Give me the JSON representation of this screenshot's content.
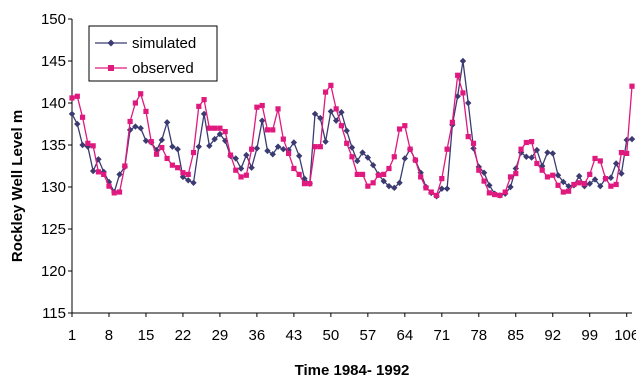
{
  "chart_data": {
    "type": "line",
    "xlabel": "Time 1984- 1992",
    "ylabel": "Rockley Well Level m",
    "xlim": [
      1,
      107
    ],
    "ylim": [
      115,
      150
    ],
    "yticks": [
      115,
      120,
      125,
      130,
      135,
      140,
      145,
      150
    ],
    "xticks": [
      1,
      8,
      15,
      22,
      29,
      36,
      43,
      50,
      57,
      64,
      71,
      78,
      85,
      92,
      99,
      106
    ],
    "grid": false,
    "legend_position": "top-left",
    "series": [
      {
        "name": "simulated",
        "color": "#3b3b72",
        "marker": "diamond",
        "x": [
          1,
          2,
          3,
          4,
          5,
          6,
          7,
          8,
          9,
          10,
          11,
          12,
          13,
          14,
          15,
          16,
          17,
          18,
          19,
          20,
          21,
          22,
          23,
          24,
          25,
          26,
          27,
          28,
          29,
          30,
          31,
          32,
          33,
          34,
          35,
          36,
          37,
          38,
          39,
          40,
          41,
          42,
          43,
          44,
          45,
          46,
          47,
          48,
          49,
          50,
          51,
          52,
          53,
          54,
          55,
          56,
          57,
          58,
          59,
          60,
          61,
          62,
          63,
          64,
          65,
          66,
          67,
          68,
          69,
          70,
          71,
          72,
          73,
          74,
          75,
          76,
          77,
          78,
          79,
          80,
          81,
          82,
          83,
          84,
          85,
          86,
          87,
          88,
          89,
          90,
          91,
          92,
          93,
          94,
          95,
          96,
          97,
          98,
          99,
          100,
          101,
          102,
          103,
          104,
          105,
          106,
          107
        ],
        "y": [
          138.7,
          137.5,
          135.0,
          134.8,
          131.9,
          133.3,
          131.8,
          130.6,
          129.4,
          131.5,
          132.4,
          136.8,
          137.2,
          137.0,
          135.5,
          135.3,
          134.4,
          135.6,
          137.7,
          134.8,
          134.5,
          131.2,
          130.8,
          130.5,
          134.8,
          138.7,
          134.9,
          135.7,
          136.3,
          135.5,
          133.7,
          133.4,
          132.2,
          133.8,
          132.3,
          134.6,
          137.9,
          134.3,
          133.9,
          134.8,
          134.5,
          134.4,
          135.3,
          133.7,
          131.0,
          130.4,
          138.7,
          138.2,
          135.4,
          139.0,
          137.9,
          138.9,
          136.7,
          134.7,
          133.1,
          134.1,
          133.5,
          132.6,
          131.5,
          130.7,
          130.1,
          129.9,
          130.5,
          133.4,
          134.5,
          133.2,
          131.7,
          130.0,
          129.3,
          128.9,
          129.8,
          129.8,
          137.4,
          140.8,
          145.0,
          140.0,
          134.6,
          132.4,
          131.7,
          130.2,
          129.2,
          129.0,
          129.2,
          130.0,
          132.2,
          134.1,
          133.6,
          133.5,
          134.4,
          132.5,
          134.1,
          134.0,
          131.4,
          130.6,
          130.1,
          130.2,
          131.3,
          130.1,
          130.4,
          130.9,
          130.1,
          131.0,
          131.1,
          132.8,
          131.6,
          135.6,
          135.7
        ]
      },
      {
        "name": "observed",
        "color": "#e0197f",
        "marker": "square",
        "x": [
          1,
          2,
          3,
          4,
          5,
          6,
          7,
          8,
          9,
          10,
          11,
          12,
          13,
          14,
          15,
          16,
          17,
          18,
          19,
          20,
          21,
          22,
          23,
          24,
          25,
          26,
          27,
          28,
          29,
          30,
          31,
          32,
          33,
          34,
          35,
          36,
          37,
          38,
          39,
          40,
          41,
          42,
          43,
          44,
          45,
          46,
          47,
          48,
          49,
          50,
          51,
          52,
          53,
          54,
          55,
          56,
          57,
          58,
          59,
          60,
          61,
          62,
          63,
          64,
          65,
          66,
          67,
          68,
          69,
          70,
          71,
          72,
          73,
          74,
          75,
          76,
          77,
          78,
          79,
          80,
          81,
          82,
          83,
          84,
          85,
          86,
          87,
          88,
          89,
          90,
          91,
          92,
          93,
          94,
          95,
          96,
          97,
          98,
          99,
          100,
          101,
          102,
          103,
          104,
          105,
          106,
          107
        ],
        "y": [
          140.6,
          140.8,
          138.3,
          135.2,
          134.9,
          131.8,
          131.5,
          130.1,
          129.3,
          129.4,
          132.5,
          137.8,
          140.0,
          141.1,
          139.0,
          135.4,
          133.9,
          134.7,
          133.4,
          132.6,
          132.3,
          131.7,
          131.5,
          134.1,
          139.6,
          140.4,
          137.0,
          137.0,
          137.0,
          136.6,
          133.8,
          132.0,
          131.2,
          131.4,
          134.5,
          139.5,
          139.7,
          136.8,
          136.8,
          139.3,
          135.7,
          134.0,
          132.2,
          131.5,
          130.4,
          130.4,
          134.8,
          134.8,
          141.3,
          142.1,
          139.3,
          137.3,
          135.2,
          133.6,
          131.5,
          131.5,
          130.1,
          130.5,
          131.4,
          131.5,
          132.2,
          133.6,
          136.9,
          137.3,
          134.5,
          133.2,
          131.2,
          129.9,
          129.4,
          129.0,
          131.0,
          134.5,
          137.7,
          143.3,
          141.2,
          136.0,
          135.2,
          132.0,
          130.7,
          129.3,
          129.1,
          129.0,
          129.4,
          131.2,
          131.6,
          134.5,
          135.3,
          135.4,
          132.8,
          132.0,
          131.2,
          131.4,
          130.2,
          129.4,
          129.5,
          130.3,
          130.5,
          130.4,
          131.5,
          133.4,
          133.1,
          131.0,
          130.1,
          130.3,
          134.1,
          134.0,
          142.0
        ]
      }
    ]
  }
}
